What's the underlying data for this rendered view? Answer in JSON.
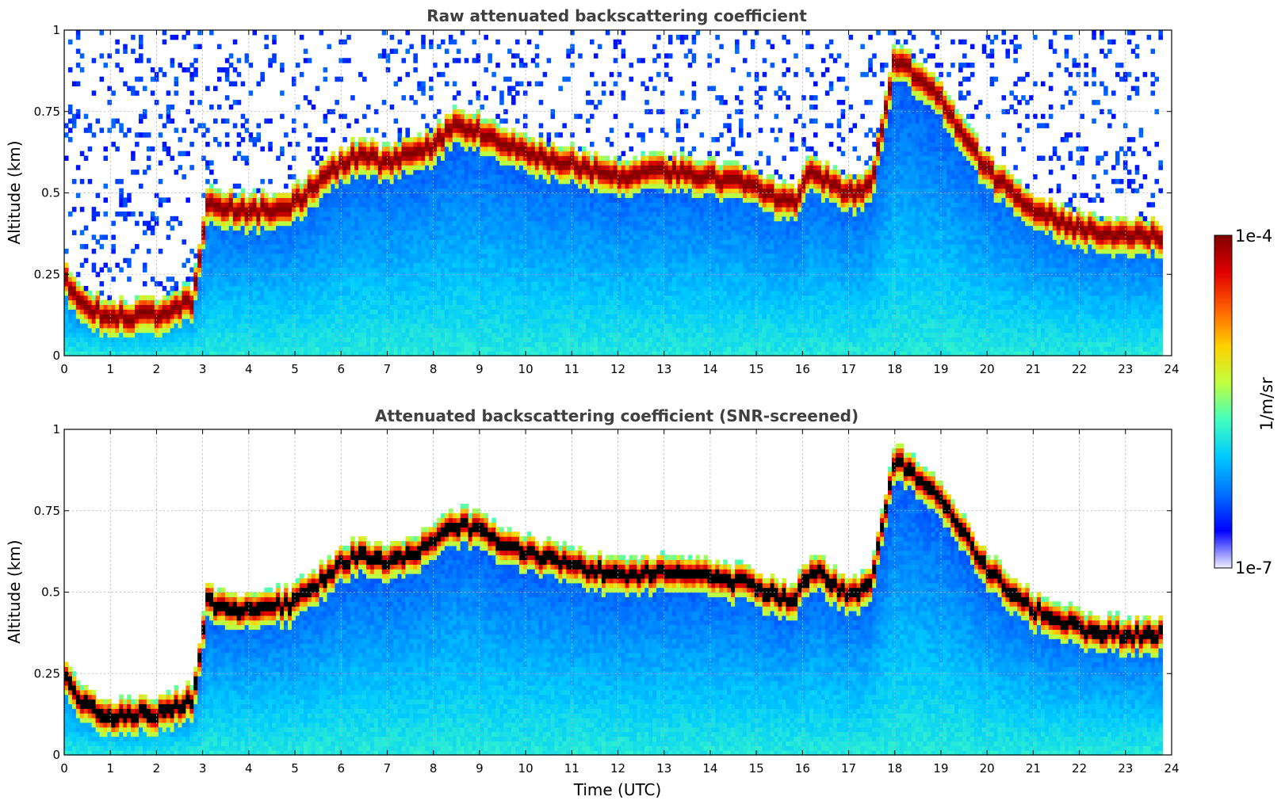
{
  "chart_data": [
    {
      "type": "heatmap",
      "title": "Raw attenuated backscattering coefficient",
      "xlabel": "",
      "ylabel": "Altitude (km)",
      "xlim": [
        0,
        24
      ],
      "ylim": [
        0,
        1
      ],
      "x_ticks": [
        "0",
        "1",
        "2",
        "3",
        "4",
        "5",
        "6",
        "7",
        "8",
        "9",
        "10",
        "11",
        "12",
        "13",
        "14",
        "15",
        "16",
        "17",
        "18",
        "19",
        "20",
        "21",
        "22",
        "23",
        "24"
      ],
      "y_ticks": [
        "0",
        "0.25",
        "0.5",
        "0.75",
        "1"
      ],
      "grid": true,
      "screened": false,
      "layer_top_km": [
        [
          0,
          0.27
        ],
        [
          0.5,
          0.18
        ],
        [
          1,
          0.15
        ],
        [
          2,
          0.16
        ],
        [
          2.8,
          0.2
        ],
        [
          3.1,
          0.5
        ],
        [
          4,
          0.47
        ],
        [
          5,
          0.5
        ],
        [
          6,
          0.62
        ],
        [
          6.4,
          0.65
        ],
        [
          7,
          0.62
        ],
        [
          8,
          0.68
        ],
        [
          8.5,
          0.74
        ],
        [
          9,
          0.72
        ],
        [
          10,
          0.65
        ],
        [
          11,
          0.62
        ],
        [
          12,
          0.58
        ],
        [
          13,
          0.6
        ],
        [
          14,
          0.58
        ],
        [
          15,
          0.55
        ],
        [
          15.8,
          0.5
        ],
        [
          16.2,
          0.6
        ],
        [
          17,
          0.53
        ],
        [
          17.5,
          0.55
        ],
        [
          18,
          0.95
        ],
        [
          19,
          0.82
        ],
        [
          20,
          0.6
        ],
        [
          21,
          0.48
        ],
        [
          22,
          0.42
        ],
        [
          23,
          0.4
        ],
        [
          23.8,
          0.4
        ]
      ]
    },
    {
      "type": "heatmap",
      "title": "Attenuated backscattering coefficient (SNR-screened)",
      "xlabel": "Time (UTC)",
      "ylabel": "Altitude (km)",
      "xlim": [
        0,
        24
      ],
      "ylim": [
        0,
        1
      ],
      "x_ticks": [
        "0",
        "1",
        "2",
        "3",
        "4",
        "5",
        "6",
        "7",
        "8",
        "9",
        "10",
        "11",
        "12",
        "13",
        "14",
        "15",
        "16",
        "17",
        "18",
        "19",
        "20",
        "21",
        "22",
        "23",
        "24"
      ],
      "y_ticks": [
        "0",
        "0.25",
        "0.5",
        "0.75",
        "1"
      ],
      "grid": true,
      "screened": true,
      "layer_top_km": [
        [
          0,
          0.27
        ],
        [
          0.5,
          0.18
        ],
        [
          1,
          0.15
        ],
        [
          2,
          0.16
        ],
        [
          2.8,
          0.2
        ],
        [
          3.1,
          0.5
        ],
        [
          4,
          0.47
        ],
        [
          5,
          0.5
        ],
        [
          6,
          0.62
        ],
        [
          6.4,
          0.65
        ],
        [
          7,
          0.62
        ],
        [
          8,
          0.68
        ],
        [
          8.5,
          0.74
        ],
        [
          9,
          0.72
        ],
        [
          10,
          0.65
        ],
        [
          11,
          0.62
        ],
        [
          12,
          0.58
        ],
        [
          13,
          0.6
        ],
        [
          14,
          0.58
        ],
        [
          15,
          0.55
        ],
        [
          15.8,
          0.5
        ],
        [
          16.2,
          0.6
        ],
        [
          17,
          0.53
        ],
        [
          17.5,
          0.55
        ],
        [
          18,
          0.95
        ],
        [
          19,
          0.82
        ],
        [
          20,
          0.6
        ],
        [
          21,
          0.48
        ],
        [
          22,
          0.42
        ],
        [
          23,
          0.4
        ],
        [
          23.8,
          0.4
        ]
      ]
    }
  ],
  "colorbar": {
    "max_label": "1e-4",
    "min_label": "1e-7",
    "unit_label": "1/m/sr",
    "scale": "log",
    "colormap": [
      "#f0f0ff",
      "#0000ff",
      "#0070ff",
      "#00c8ff",
      "#40ffc0",
      "#c0ff40",
      "#ffd000",
      "#ff6000",
      "#e00000",
      "#800000"
    ]
  }
}
